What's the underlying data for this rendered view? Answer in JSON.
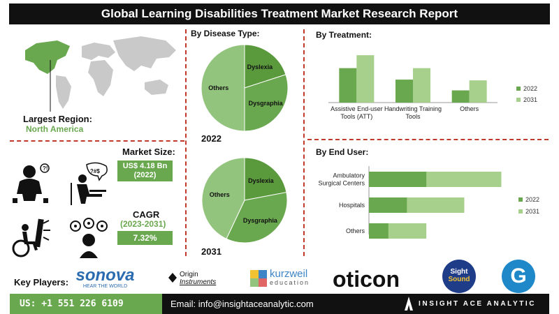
{
  "title": "Global Learning Disabilities Treatment Market Research Report",
  "largest_region": {
    "label": "Largest Region:",
    "value": "North America"
  },
  "market_size": {
    "label": "Market Size:",
    "value": "US$ 4.18 Bn",
    "year": "(2022)"
  },
  "cagr": {
    "label": "CAGR",
    "period": "(2023-2031)",
    "value": "7.32%"
  },
  "sections": {
    "disease_type": "By Disease Type:",
    "treatment": "By Treatment:",
    "end_user": "By End User:"
  },
  "colors": {
    "dark_green": "#6aa84f",
    "light_green": "#a8d08d",
    "accent_red": "#c0392b",
    "black": "#111111"
  },
  "chart_data": [
    {
      "type": "pie",
      "year": "2022",
      "labels": [
        "Dyslexia",
        "Dysgraphia",
        "Others"
      ],
      "values": [
        20,
        30,
        50
      ],
      "colors": [
        "#5b9a3c",
        "#6aa84f",
        "#93c47d"
      ]
    },
    {
      "type": "pie",
      "year": "2031",
      "labels": [
        "Dyslexia",
        "Dysgraphia",
        "Others"
      ],
      "values": [
        22,
        35,
        43
      ],
      "colors": [
        "#5b9a3c",
        "#6aa84f",
        "#93c47d"
      ]
    },
    {
      "type": "bar",
      "categories": [
        "Assistive End-user Tools (ATT)",
        "Handwriting Training Tools",
        "Others"
      ],
      "category_lines": [
        [
          "Assistive End-user",
          "Tools (ATT)"
        ],
        [
          "Handwriting Training",
          "Tools"
        ],
        [
          "Others"
        ]
      ],
      "series": [
        {
          "name": "2022",
          "values": [
            48,
            32,
            17
          ],
          "color": "#6aa84f"
        },
        {
          "name": "2031",
          "values": [
            66,
            48,
            31
          ],
          "color": "#a8d08d"
        }
      ],
      "ylim": [
        0,
        70
      ]
    },
    {
      "type": "bar",
      "orientation": "horizontal",
      "categories": [
        "Ambulatory Surgical Centers",
        "Hospitals",
        "Others"
      ],
      "category_lines": [
        [
          "Ambulatory",
          "Surgical Centers"
        ],
        [
          "Hospitals"
        ],
        [
          "Others"
        ]
      ],
      "series": [
        {
          "name": "2022",
          "values": [
            62,
            41,
            21
          ],
          "color": "#6aa84f"
        },
        {
          "name": "2031",
          "values": [
            143,
            103,
            62
          ],
          "color": "#a8d08d"
        }
      ],
      "stacked_overlay": true,
      "xlim": [
        0,
        160
      ]
    }
  ],
  "key_players": {
    "label": "Key Players:",
    "logos": [
      {
        "name": "sonova",
        "tagline": "HEAR THE WORLD"
      },
      {
        "name": "Origin",
        "line2": "Instruments"
      },
      {
        "name": "kurzweil",
        "line2": "education"
      },
      {
        "name": "oticon"
      },
      {
        "name": "Sight",
        "line2": "Sound"
      },
      {
        "name": "G"
      }
    ]
  },
  "contact": {
    "phone": "US: +1 551 226 6109",
    "email": "Email: info@insightaceanalytic.com",
    "brand": "INSIGHT ACE ANALYTIC"
  }
}
